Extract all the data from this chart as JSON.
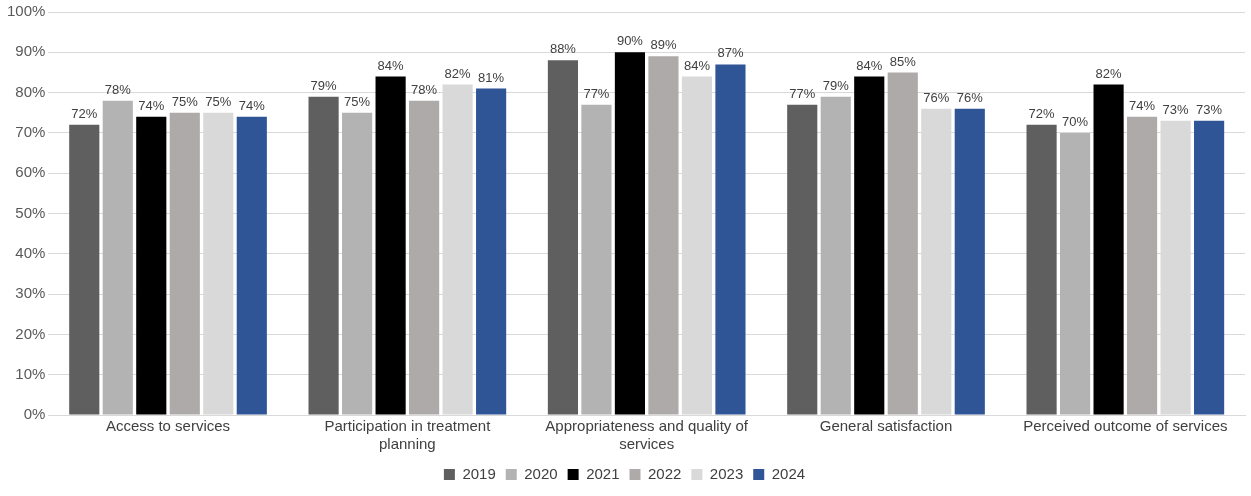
{
  "chart_data": {
    "type": "bar",
    "categories": [
      "Access to services",
      "Participation in treatment planning",
      "Appropriateness and quality of services",
      "General satisfaction",
      "Perceived outcome of services"
    ],
    "series": [
      {
        "name": "2019",
        "color": "#5f5f5f",
        "values": [
          72,
          79,
          88,
          77,
          72
        ],
        "value_labels": [
          "72%",
          "79%",
          "88%",
          "77%",
          "72%"
        ]
      },
      {
        "name": "2020",
        "color": "#b3b3b3",
        "values": [
          78,
          75,
          77,
          79,
          70
        ],
        "value_labels": [
          "78%",
          "75%",
          "77%",
          "79%",
          "70%"
        ]
      },
      {
        "name": "2021",
        "color": "#000000",
        "values": [
          74,
          84,
          90,
          84,
          82
        ],
        "value_labels": [
          "74%",
          "84%",
          "90%",
          "84%",
          "82%"
        ]
      },
      {
        "name": "2022",
        "color": "#aeaaaa",
        "values": [
          75,
          78,
          89,
          85,
          74
        ],
        "value_labels": [
          "75%",
          "78%",
          "89%",
          "85%",
          "74%"
        ]
      },
      {
        "name": "2023",
        "color": "#d9d9d9",
        "values": [
          75,
          82,
          84,
          76,
          73
        ],
        "value_labels": [
          "75%",
          "82%",
          "84%",
          "76%",
          "73%"
        ]
      },
      {
        "name": "2024",
        "color": "#2f5597",
        "values": [
          74,
          81,
          87,
          76,
          73
        ],
        "value_labels": [
          "74%",
          "81%",
          "87%",
          "76%",
          "73%"
        ]
      }
    ],
    "ylim": [
      0,
      100
    ],
    "yticks": [
      {
        "value": 0,
        "label": "0%"
      },
      {
        "value": 10,
        "label": "10%"
      },
      {
        "value": 20,
        "label": "20%"
      },
      {
        "value": 30,
        "label": "30%"
      },
      {
        "value": 40,
        "label": "40%"
      },
      {
        "value": 50,
        "label": "50%"
      },
      {
        "value": 60,
        "label": "60%"
      },
      {
        "value": 70,
        "label": "70%"
      },
      {
        "value": 80,
        "label": "80%"
      },
      {
        "value": 90,
        "label": "90%"
      },
      {
        "value": 100,
        "label": "100%"
      }
    ],
    "grid": "y",
    "legend": "bottom"
  }
}
